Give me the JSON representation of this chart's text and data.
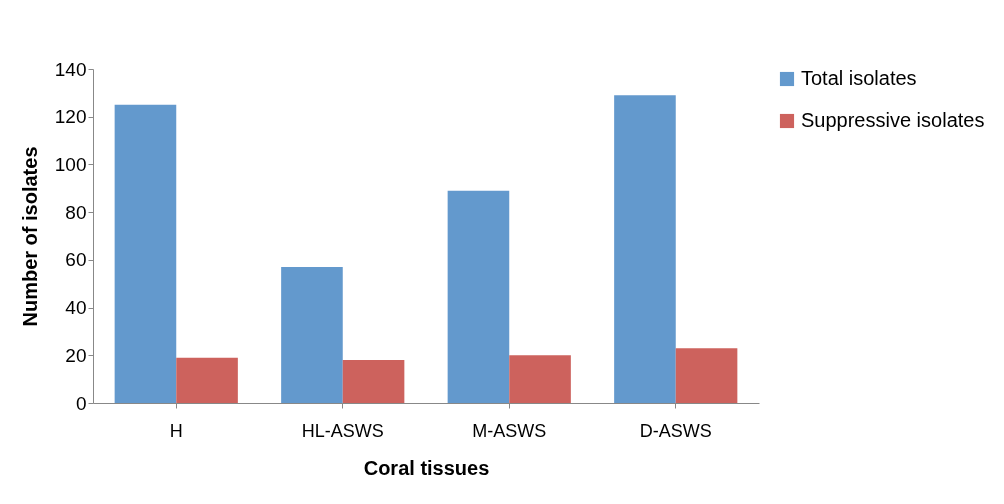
{
  "chart_data": {
    "type": "bar",
    "xlabel": "Coral tissues",
    "ylabel": "Number of isolates",
    "categories": [
      "H",
      "HL-ASWS",
      "M-ASWS",
      "D-ASWS"
    ],
    "series": [
      {
        "name": "Total isolates",
        "color": "#6399cd",
        "values": [
          125,
          57,
          89,
          129
        ]
      },
      {
        "name": "Suppressive isolates",
        "color": "#cd625d",
        "values": [
          19,
          18,
          20,
          23
        ]
      }
    ],
    "ylim": [
      0,
      140
    ],
    "yticks": [
      0,
      20,
      40,
      60,
      80,
      100,
      120,
      140
    ],
    "grid": false,
    "legend": "right"
  }
}
